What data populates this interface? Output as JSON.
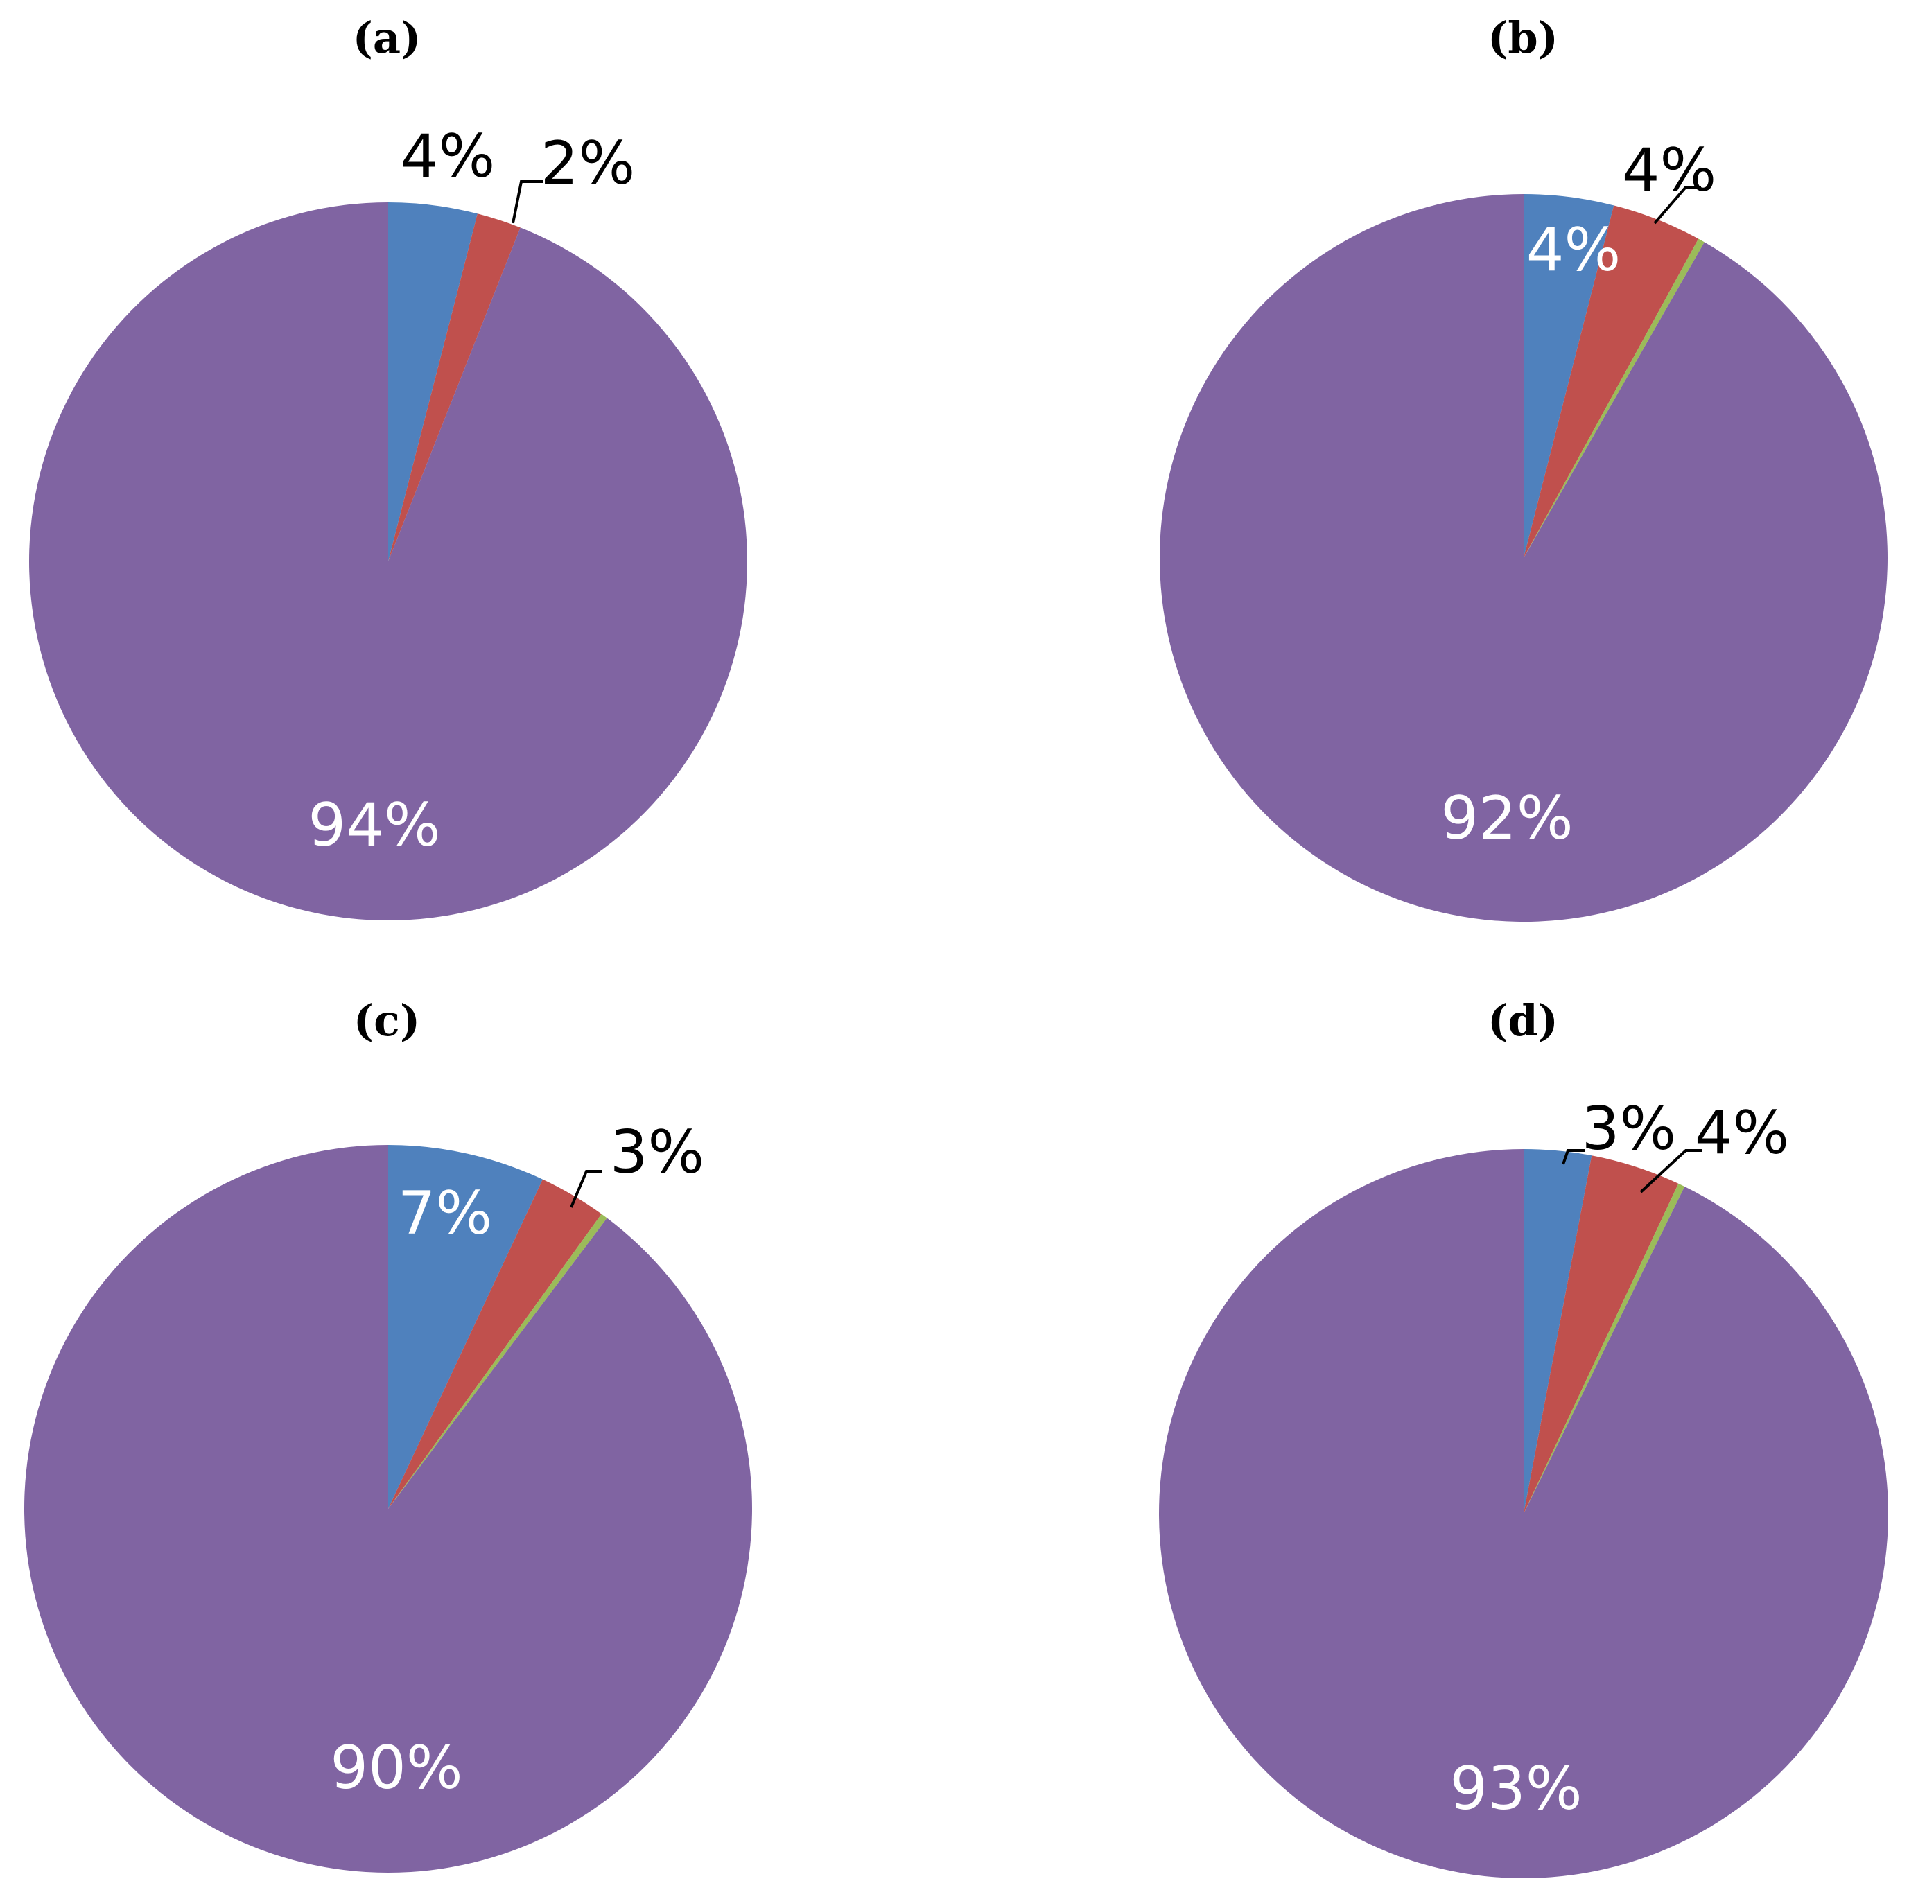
{
  "colors": {
    "blue": "#4F81BD",
    "red": "#C0504D",
    "green": "#9BBB59",
    "purple": "#8064A2"
  },
  "chart_data": [
    {
      "type": "pie",
      "title": "(a)",
      "values": [
        4,
        2,
        0,
        94
      ],
      "colors": [
        "#4F81BD",
        "#C0504D",
        "#9BBB59",
        "#8064A2"
      ],
      "labels": [
        "4%",
        "2%",
        "",
        "94%"
      ]
    },
    {
      "type": "pie",
      "title": "(b)",
      "values": [
        4,
        4,
        0.3,
        92
      ],
      "colors": [
        "#4F81BD",
        "#C0504D",
        "#9BBB59",
        "#8064A2"
      ],
      "labels": [
        "4%",
        "4%",
        "",
        "92%"
      ]
    },
    {
      "type": "pie",
      "title": "(c)",
      "values": [
        7,
        3,
        0.3,
        90
      ],
      "colors": [
        "#4F81BD",
        "#C0504D",
        "#9BBB59",
        "#8064A2"
      ],
      "labels": [
        "7%",
        "3%",
        "",
        "90%"
      ]
    },
    {
      "type": "pie",
      "title": "(d)",
      "values": [
        3,
        4,
        0.3,
        93
      ],
      "colors": [
        "#4F81BD",
        "#C0504D",
        "#9BBB59",
        "#8064A2"
      ],
      "labels": [
        "3%",
        "4%",
        "",
        "93%"
      ]
    }
  ]
}
